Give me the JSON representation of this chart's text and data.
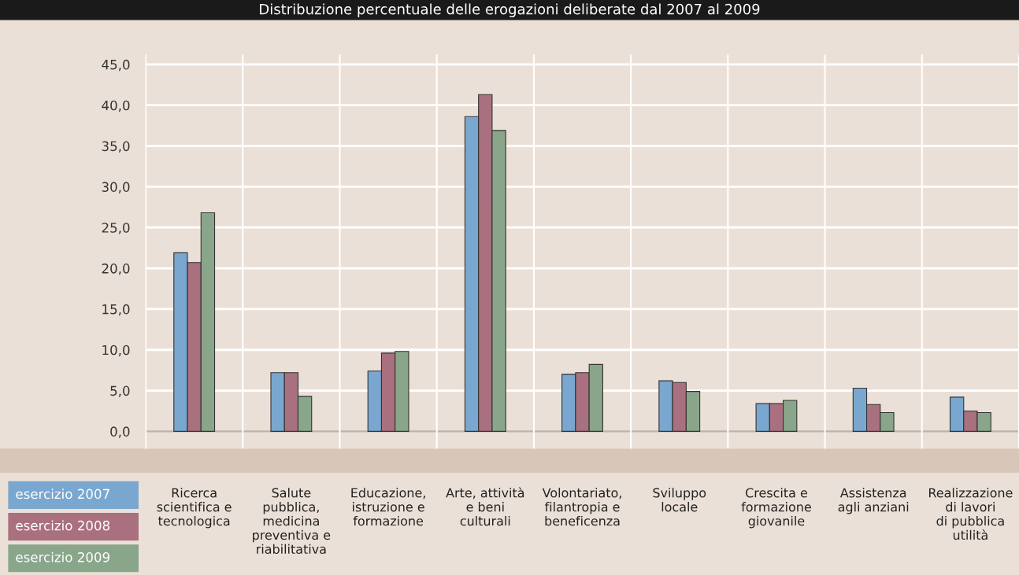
{
  "chart_data": {
    "type": "bar",
    "title": "Distribuzione percentuale delle erogazioni deliberate dal 2007 al 2009",
    "categories": [
      "Ricerca\nscientifica e\ntecnologica",
      "Salute\npubblica,\nmedicina\npreventiva e\nriabilitativa",
      "Educazione,\nistruzione e\nformazione",
      "Arte, attività\ne beni\nculturali",
      "Volontariato,\nfilantropia e\nbeneficenza",
      "Sviluppo\nlocale",
      "Crescita e\nformazione\ngiovanile",
      "Assistenza\nagli anziani",
      "Realizzazione\ndi lavori\ndi pubblica\nutilità"
    ],
    "series": [
      {
        "name": "esercizio 2007",
        "color": "#7aa7cf",
        "values": [
          21.9,
          7.2,
          7.4,
          38.6,
          7.0,
          6.2,
          3.4,
          5.3,
          4.2
        ]
      },
      {
        "name": "esercizio 2008",
        "color": "#a97080",
        "values": [
          20.7,
          7.2,
          9.6,
          41.3,
          7.2,
          6.0,
          3.4,
          3.3,
          2.5
        ]
      },
      {
        "name": "esercizio 2009",
        "color": "#8aa68a",
        "values": [
          26.8,
          4.3,
          9.8,
          36.9,
          8.2,
          4.9,
          3.8,
          2.3,
          2.3
        ]
      }
    ],
    "ylim": [
      -2.1,
      46.2
    ],
    "yticks": [
      {
        "value": 0,
        "label": "0,0"
      },
      {
        "value": 5,
        "label": "5,0"
      },
      {
        "value": 10,
        "label": "10,0"
      },
      {
        "value": 15,
        "label": "15,0"
      },
      {
        "value": 20,
        "label": "20,0"
      },
      {
        "value": 25,
        "label": "25,0"
      },
      {
        "value": 30,
        "label": "30,0"
      },
      {
        "value": 35,
        "label": "35,0"
      },
      {
        "value": 40,
        "label": "40,0"
      },
      {
        "value": 45,
        "label": "45,0"
      }
    ],
    "grid": true,
    "legend": "bottom left"
  }
}
